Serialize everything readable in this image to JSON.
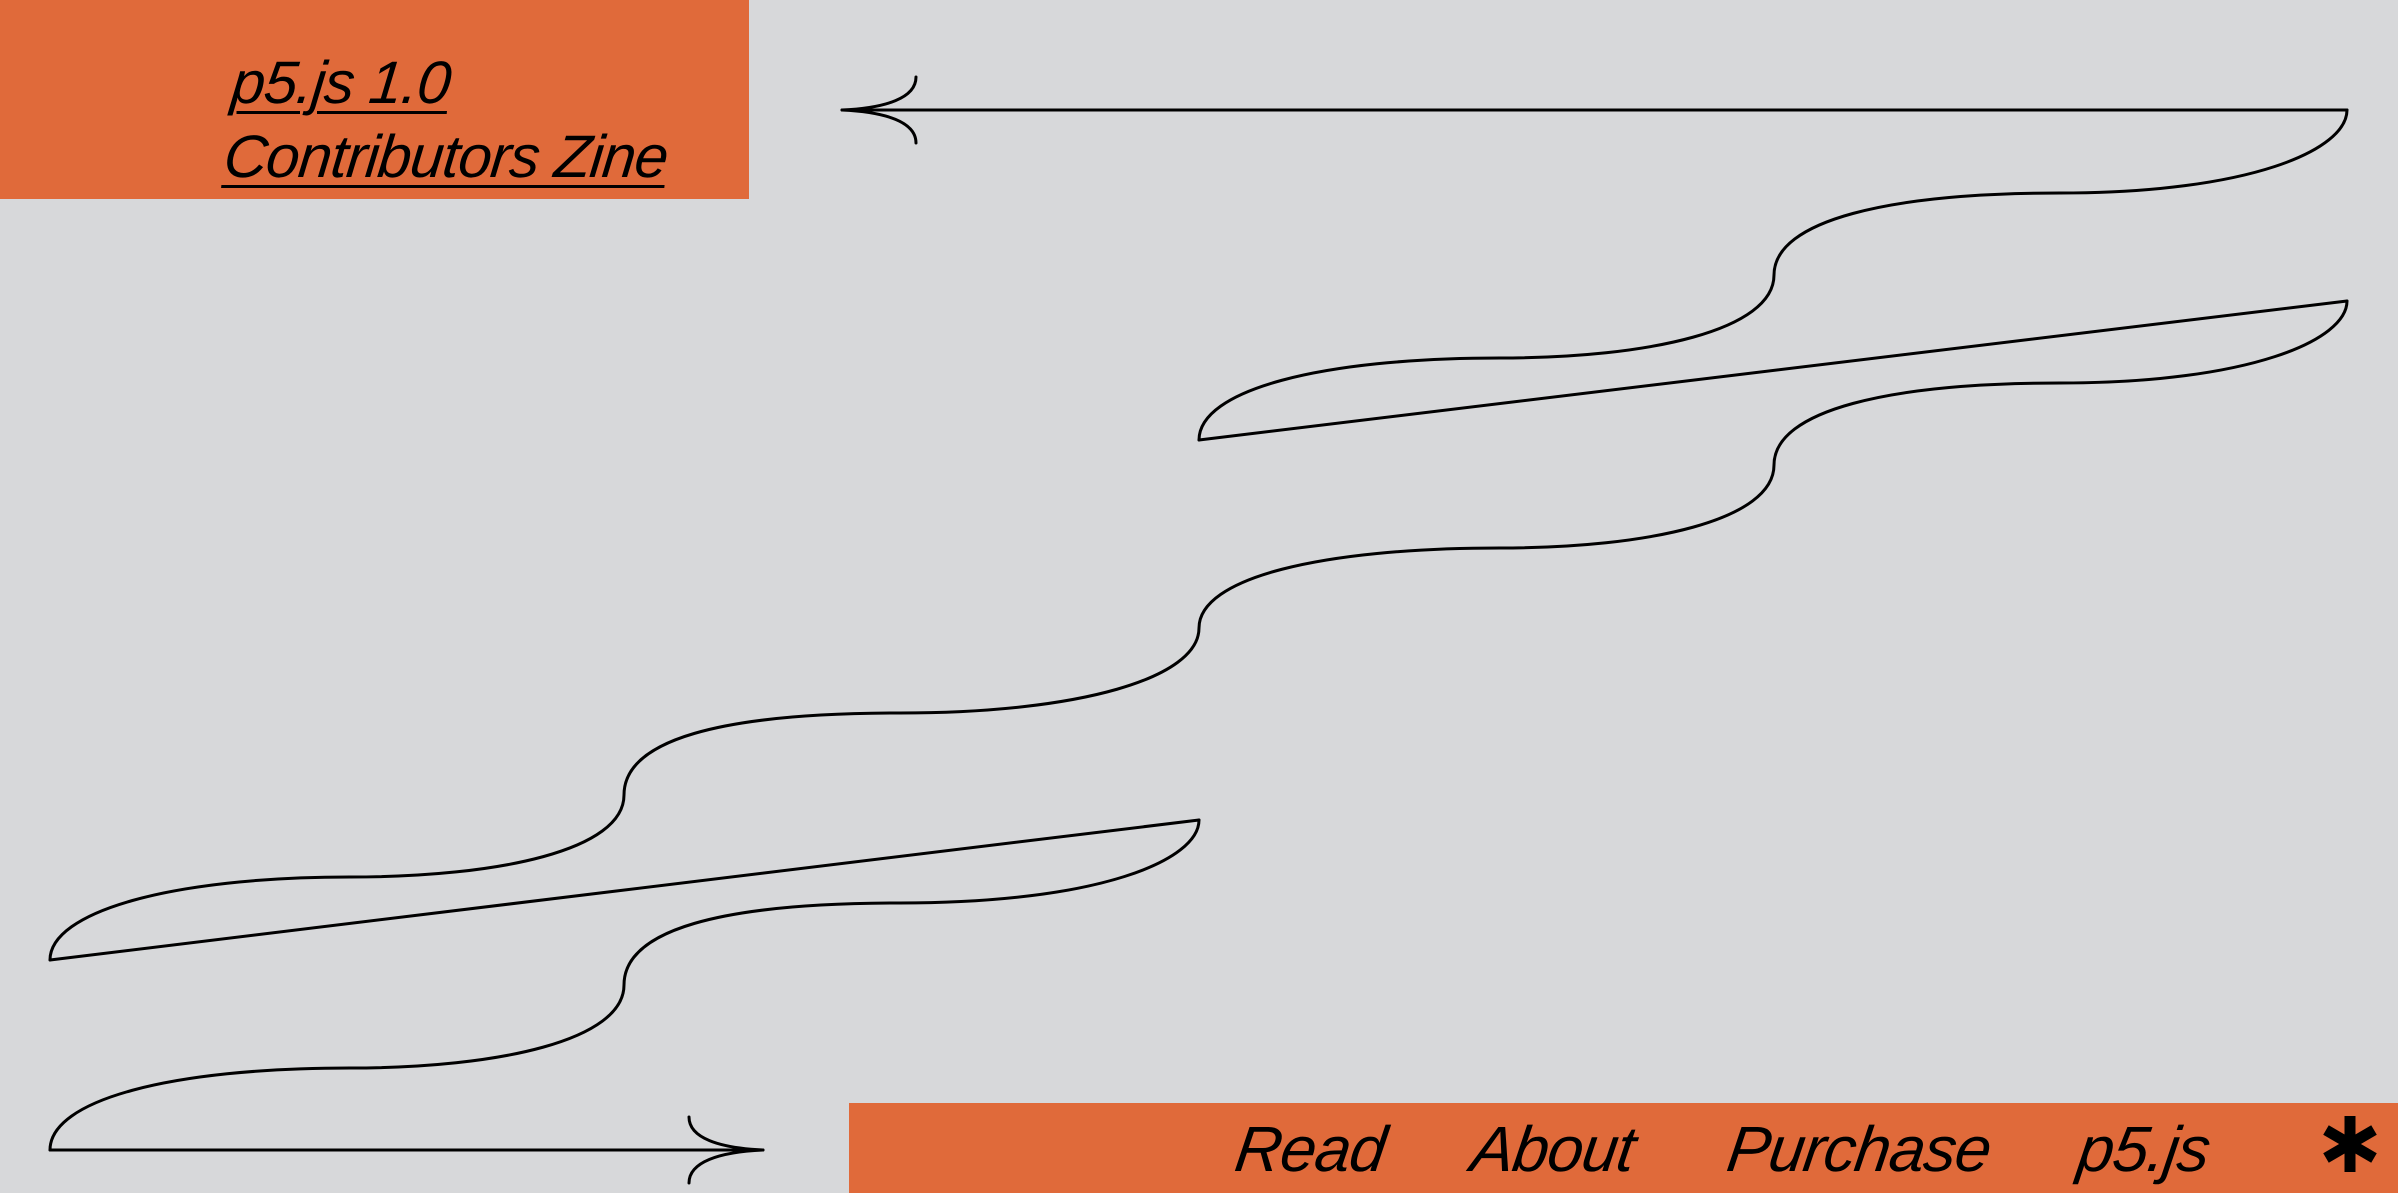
{
  "colors": {
    "background": "#d7d8da",
    "accent": "#e06a3a",
    "ink": "#000000"
  },
  "header": {
    "title_line1": "p5.js 1.0",
    "title_line2": "Contributors Zine"
  },
  "nav": {
    "items": [
      {
        "label": "Read"
      },
      {
        "label": "About"
      },
      {
        "label": "Purchase"
      },
      {
        "label": "p5.js"
      }
    ],
    "menu_icon": "asterisk-icon"
  }
}
